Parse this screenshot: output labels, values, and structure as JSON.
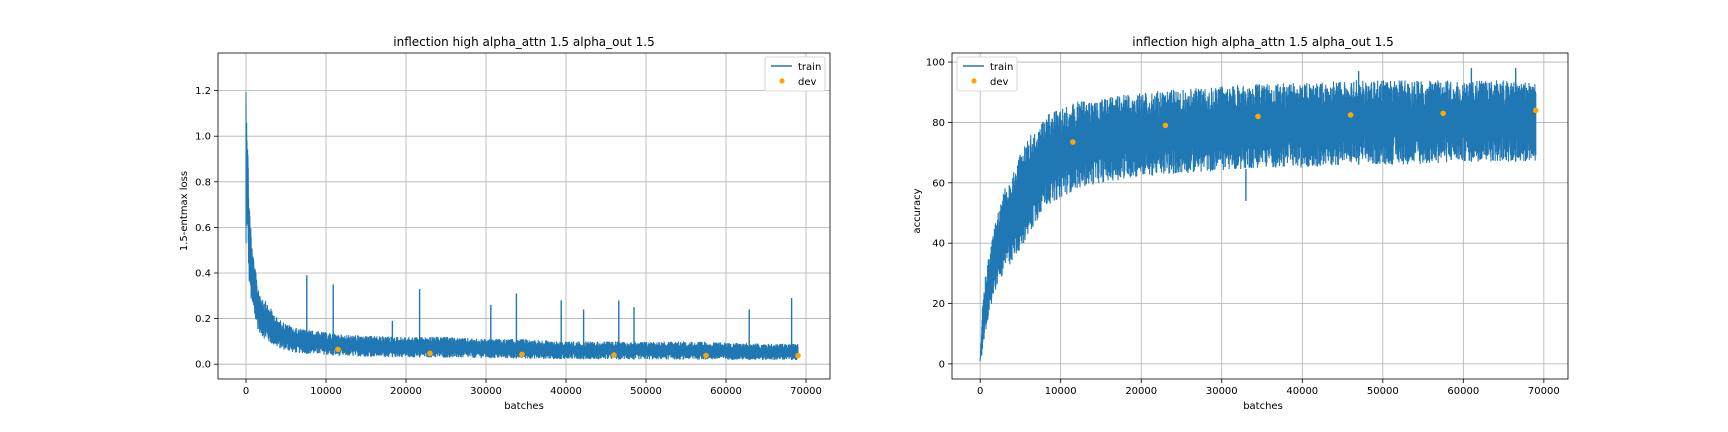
{
  "chart_data": [
    {
      "type": "line",
      "title": "inflection high alpha_attn 1.5 alpha_out 1.5",
      "xlabel": "batches",
      "ylabel": "1.5-entmax loss",
      "xlim": [
        -3500,
        73000
      ],
      "ylim": [
        -0.065,
        1.365
      ],
      "xticks": [
        0,
        10000,
        20000,
        30000,
        40000,
        50000,
        60000,
        70000
      ],
      "xtick_labels": [
        "0",
        "10000",
        "20000",
        "30000",
        "40000",
        "50000",
        "60000",
        "70000"
      ],
      "yticks": [
        0.0,
        0.2,
        0.4,
        0.6,
        0.8,
        1.0,
        1.2
      ],
      "ytick_labels": [
        "0.0",
        "0.2",
        "0.4",
        "0.6",
        "0.8",
        "1.0",
        "1.2"
      ],
      "grid": true,
      "legend": {
        "position": "top-right",
        "entries": [
          "train",
          "dev"
        ]
      },
      "series": [
        {
          "name": "train",
          "kind": "line",
          "color": "#1f77b4",
          "x": [
            0,
            100,
            200,
            400,
            700,
            1000,
            1500,
            2000,
            3000,
            4000,
            5000,
            6000,
            8000,
            10000,
            12000,
            15000,
            20000,
            25000,
            30000,
            35000,
            40000,
            45000,
            50000,
            55000,
            60000,
            65000,
            69000
          ],
          "y_low": [
            0.3,
            0.6,
            0.5,
            0.35,
            0.25,
            0.2,
            0.15,
            0.12,
            0.09,
            0.07,
            0.06,
            0.05,
            0.045,
            0.04,
            0.035,
            0.033,
            0.03,
            0.028,
            0.026,
            0.024,
            0.022,
            0.021,
            0.02,
            0.02,
            0.019,
            0.018,
            0.018
          ],
          "y_high": [
            1.3,
            1.2,
            1.0,
            0.75,
            0.55,
            0.45,
            0.35,
            0.3,
            0.25,
            0.2,
            0.18,
            0.16,
            0.15,
            0.14,
            0.13,
            0.125,
            0.12,
            0.12,
            0.11,
            0.11,
            0.1,
            0.1,
            0.1,
            0.1,
            0.095,
            0.09,
            0.09
          ],
          "spikes_x": [
            7600,
            10900,
            18300,
            21700,
            30600,
            33800,
            39400,
            42200,
            46600,
            48500,
            62900,
            68200
          ],
          "spikes_y": [
            0.39,
            0.35,
            0.19,
            0.33,
            0.26,
            0.31,
            0.28,
            0.24,
            0.28,
            0.25,
            0.24,
            0.29
          ]
        },
        {
          "name": "dev",
          "kind": "scatter",
          "color": "#ffa500",
          "x": [
            11500,
            23000,
            34500,
            46000,
            57500,
            69000
          ],
          "y": [
            0.065,
            0.048,
            0.043,
            0.04,
            0.038,
            0.038
          ]
        }
      ]
    },
    {
      "type": "line",
      "title": "inflection high alpha_attn 1.5 alpha_out 1.5",
      "xlabel": "batches",
      "ylabel": "accuracy",
      "xlim": [
        -3500,
        73000
      ],
      "ylim": [
        -5,
        103
      ],
      "xticks": [
        0,
        10000,
        20000,
        30000,
        40000,
        50000,
        60000,
        70000
      ],
      "xtick_labels": [
        "0",
        "10000",
        "20000",
        "30000",
        "40000",
        "50000",
        "60000",
        "70000"
      ],
      "yticks": [
        0,
        20,
        40,
        60,
        80,
        100
      ],
      "ytick_labels": [
        "0",
        "20",
        "40",
        "60",
        "80",
        "100"
      ],
      "grid": true,
      "legend": {
        "position": "top-left",
        "entries": [
          "train",
          "dev"
        ]
      },
      "series": [
        {
          "name": "train",
          "kind": "line",
          "color": "#1f77b4",
          "x": [
            0,
            200,
            500,
            1000,
            1500,
            2000,
            3000,
            4000,
            5000,
            6000,
            7000,
            8000,
            10000,
            12000,
            15000,
            20000,
            25000,
            30000,
            35000,
            40000,
            45000,
            50000,
            55000,
            60000,
            65000,
            69000
          ],
          "y_low": [
            0,
            2,
            8,
            15,
            20,
            25,
            30,
            34,
            38,
            42,
            47,
            52,
            55,
            58,
            60,
            62,
            63,
            64,
            65,
            65,
            66,
            66,
            66,
            67,
            67,
            67
          ],
          "y_high": [
            3,
            15,
            28,
            35,
            42,
            48,
            58,
            64,
            70,
            75,
            78,
            82,
            85,
            87,
            88,
            90,
            91,
            92,
            93,
            93,
            94,
            94,
            94,
            94,
            94,
            93
          ],
          "spikes_x": [
            33000,
            47000,
            61000,
            66500
          ],
          "spikes_y": [
            54,
            97,
            98,
            98
          ]
        },
        {
          "name": "dev",
          "kind": "scatter",
          "color": "#ffa500",
          "x": [
            11500,
            23000,
            34500,
            46000,
            57500,
            69000
          ],
          "y": [
            73.5,
            79,
            82,
            82.5,
            83,
            84
          ]
        }
      ]
    }
  ]
}
